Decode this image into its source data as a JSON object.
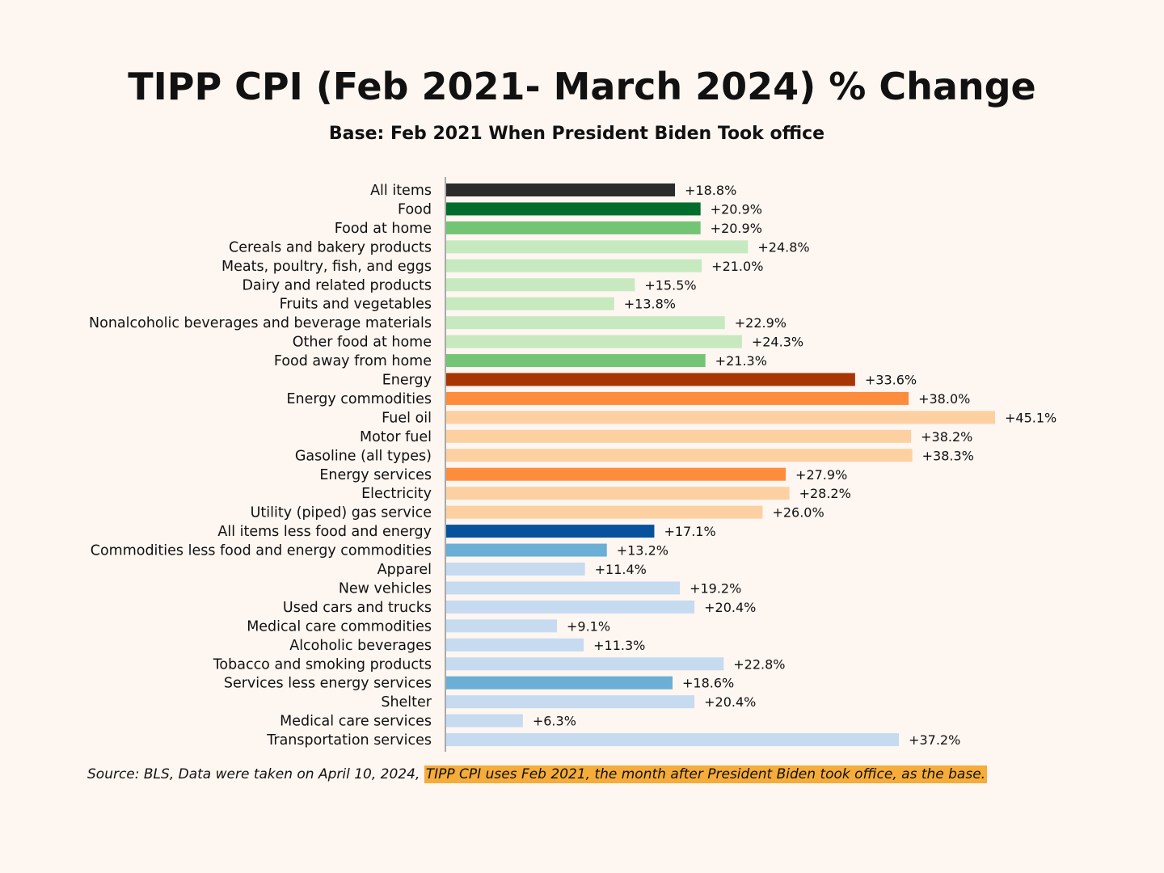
{
  "chart_data": {
    "type": "bar",
    "orientation": "horizontal",
    "title": "TIPP CPI (Feb 2021- March 2024) % Change",
    "subtitle": "Base: Feb 2021 When President Biden Took office",
    "xlabel": "",
    "ylabel": "",
    "xlim": [
      0,
      45.1
    ],
    "grid": false,
    "value_prefix": "+",
    "value_suffix": "%",
    "categories": [
      "All items",
      "Food",
      "Food at home",
      "Cereals and bakery products",
      "Meats, poultry, fish, and eggs",
      "Dairy and related products",
      "Fruits and vegetables",
      "Nonalcoholic beverages and beverage materials",
      "Other food at home",
      "Food away from home",
      "Energy",
      "Energy commodities",
      "Fuel oil",
      "Motor fuel",
      "Gasoline (all types)",
      "Energy services",
      "Electricity",
      "Utility (piped) gas service",
      "All items less food and energy",
      "Commodities less food and energy commodities",
      "Apparel",
      "New vehicles",
      "Used cars and trucks",
      "Medical care commodities",
      "Alcoholic beverages",
      "Tobacco and smoking products",
      "Services less energy services",
      "Shelter",
      "Medical care services",
      "Transportation services"
    ],
    "values": [
      18.8,
      20.9,
      20.9,
      24.8,
      21.0,
      15.5,
      13.8,
      22.9,
      24.3,
      21.3,
      33.6,
      38.0,
      45.1,
      38.2,
      38.3,
      27.9,
      28.2,
      26.0,
      17.1,
      13.2,
      11.4,
      19.2,
      20.4,
      9.1,
      11.3,
      22.8,
      18.6,
      20.4,
      6.3,
      37.2
    ],
    "value_labels": [
      "+18.8%",
      "+20.9%",
      "+20.9%",
      "+24.8%",
      "+21.0%",
      "+15.5%",
      "+13.8%",
      "+22.9%",
      "+24.3%",
      "+21.3%",
      "+33.6%",
      "+38.0%",
      "+45.1%",
      "+38.2%",
      "+38.3%",
      "+27.9%",
      "+28.2%",
      "+26.0%",
      "+17.1%",
      "+13.2%",
      "+11.4%",
      "+19.2%",
      "+20.4%",
      "+9.1%",
      "+11.3%",
      "+22.8%",
      "+18.6%",
      "+20.4%",
      "+6.3%",
      "+37.2%"
    ],
    "colors": [
      "#2b2b2b",
      "#006d2c",
      "#74c476",
      "#c7e9c0",
      "#c7e9c0",
      "#c7e9c0",
      "#c7e9c0",
      "#c7e9c0",
      "#c7e9c0",
      "#74c476",
      "#a63603",
      "#fd8d3c",
      "#fdd0a2",
      "#fdd0a2",
      "#fdd0a2",
      "#fd8d3c",
      "#fdd0a2",
      "#fdd0a2",
      "#08519c",
      "#6baed6",
      "#c6dbef",
      "#c6dbef",
      "#c6dbef",
      "#c6dbef",
      "#c6dbef",
      "#c6dbef",
      "#6baed6",
      "#c6dbef",
      "#c6dbef",
      "#c6dbef"
    ],
    "axis_color": "#aaaaaa"
  },
  "footer": {
    "source_text": "Source:  BLS, Data were taken on April 10, 2024, ",
    "highlight_text": "TIPP CPI uses Feb 2021, the month after President Biden took office, as the base."
  }
}
